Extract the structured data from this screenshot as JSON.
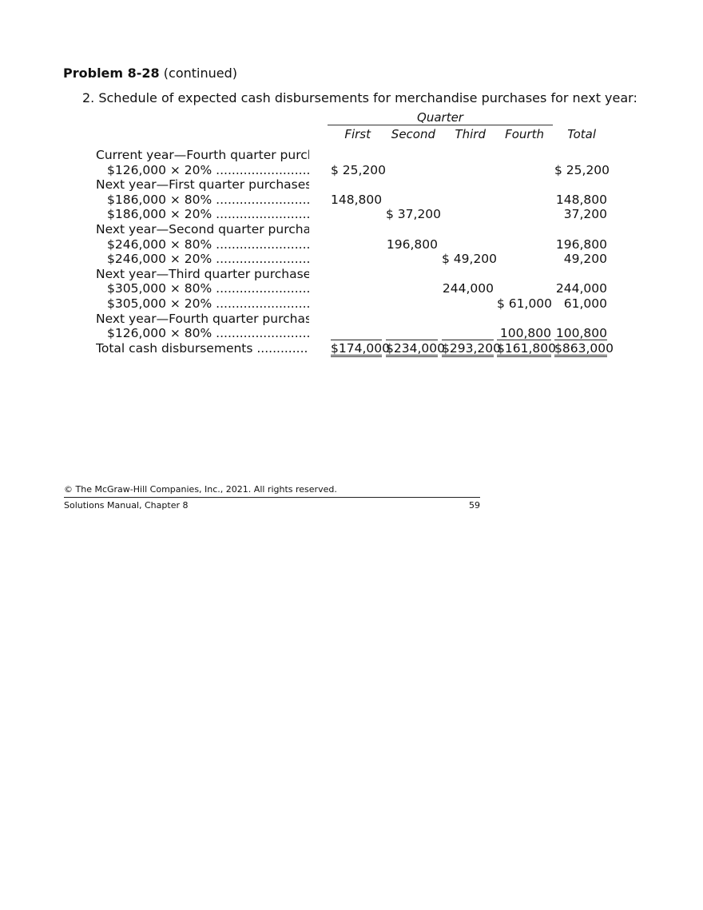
{
  "header": {
    "problem_label": "Problem 8-28",
    "continued": " (continued)",
    "intro": "2. Schedule of expected cash disbursements for merchandise purchases for next year:"
  },
  "table": {
    "group_header": "Quarter",
    "columns": [
      "First",
      "Second",
      "Third",
      "Fourth",
      "Total"
    ],
    "rows": [
      {
        "label": "Current year—Fourth quarter purchases:",
        "indent": false,
        "values": [
          "",
          "",
          "",
          "",
          ""
        ]
      },
      {
        "label": "$126,000 × 20% ..............................................",
        "indent": true,
        "values": [
          "$ 25,200",
          "",
          "",
          "",
          "$ 25,200"
        ]
      },
      {
        "label": "Next year—First quarter purchases:",
        "indent": false,
        "values": [
          "",
          "",
          "",
          "",
          ""
        ]
      },
      {
        "label": "$186,000 × 80% ..............................................",
        "indent": true,
        "values": [
          "148,800",
          "",
          "",
          "",
          "148,800"
        ]
      },
      {
        "label": "$186,000 × 20% ..............................................",
        "indent": true,
        "values": [
          "",
          "$ 37,200",
          "",
          "",
          "37,200"
        ]
      },
      {
        "label": "Next year—Second quarter purchases:",
        "indent": false,
        "values": [
          "",
          "",
          "",
          "",
          ""
        ]
      },
      {
        "label": "$246,000 × 80% ..............................................",
        "indent": true,
        "values": [
          "",
          "196,800",
          "",
          "",
          "196,800"
        ]
      },
      {
        "label": "$246,000 × 20% ..............................................",
        "indent": true,
        "values": [
          "",
          "",
          "$ 49,200",
          "",
          "49,200"
        ]
      },
      {
        "label": "Next year—Third quarter purchases:",
        "indent": false,
        "values": [
          "",
          "",
          "",
          "",
          ""
        ]
      },
      {
        "label": "$305,000 × 80% ..............................................",
        "indent": true,
        "values": [
          "",
          "",
          "244,000",
          "",
          "244,000"
        ]
      },
      {
        "label": "$305,000 × 20% ..............................................",
        "indent": true,
        "values": [
          "",
          "",
          "",
          "$ 61,000",
          "61,000"
        ]
      },
      {
        "label": "Next year—Fourth quarter purchases:",
        "indent": false,
        "values": [
          "",
          "",
          "",
          "",
          ""
        ]
      },
      {
        "label": "$126,000 × 80% ..............................................",
        "indent": true,
        "values": [
          "",
          "",
          "",
          "100,800",
          "100,800"
        ],
        "underline": true
      },
      {
        "label": "Total cash disbursements ..............................................",
        "indent": false,
        "values": [
          "$174,000",
          "$234,000",
          "$293,200",
          "$161,800",
          "$863,000"
        ],
        "double_underline": true
      }
    ]
  },
  "footer": {
    "copyright": "© The McGraw-Hill Companies, Inc., 2021. All rights reserved.",
    "manual": "Solutions Manual, Chapter 8",
    "page": "59"
  }
}
